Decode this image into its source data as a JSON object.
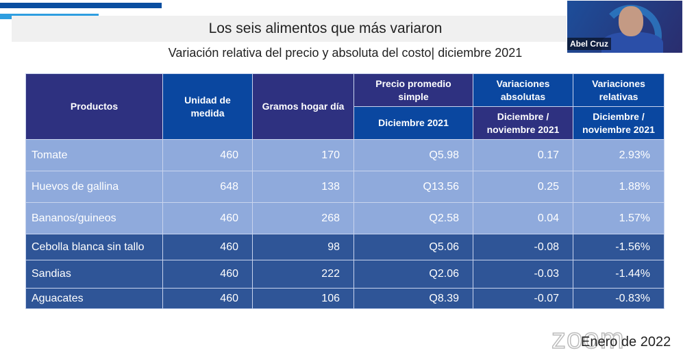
{
  "title": "Los seis alimentos que más  variaron",
  "subtitle": "Variación relativa del precio y absoluta del costo| diciembre 2021",
  "video": {
    "participant_name": "Abel Cruz",
    "watermark": "zoom"
  },
  "footer": "Enero de 2022",
  "table": {
    "headers": {
      "productos": "Productos",
      "unidad": "Unidad de medida",
      "gramos": "Gramos hogar día",
      "precio": "Precio promedio simple",
      "precio_sub": "Diciembre 2021",
      "abs": "Variaciones absolutas",
      "abs_sub": "Diciembre / noviembre 2021",
      "rel": "Variaciones relativas",
      "rel_sub": "Diciembre / noviembre 2021"
    },
    "rows": [
      [
        "Tomate",
        "460",
        "170",
        "Q5.98",
        "0.17",
        "2.93%"
      ],
      [
        "Huevos de gallina",
        "648",
        "138",
        "Q13.56",
        "0.25",
        "1.88%"
      ],
      [
        "Bananos/guineos",
        "460",
        "268",
        "Q2.58",
        "0.04",
        "1.57%"
      ],
      [
        "Cebolla blanca sin tallo",
        "460",
        "98",
        "Q5.06",
        "-0.08",
        "-1.56%"
      ],
      [
        "Sandias",
        "460",
        "222",
        "Q2.06",
        "-0.03",
        "-1.44%"
      ],
      [
        "Aguacates",
        "460",
        "106",
        "Q8.39",
        "-0.07",
        "-0.83%"
      ]
    ]
  }
}
